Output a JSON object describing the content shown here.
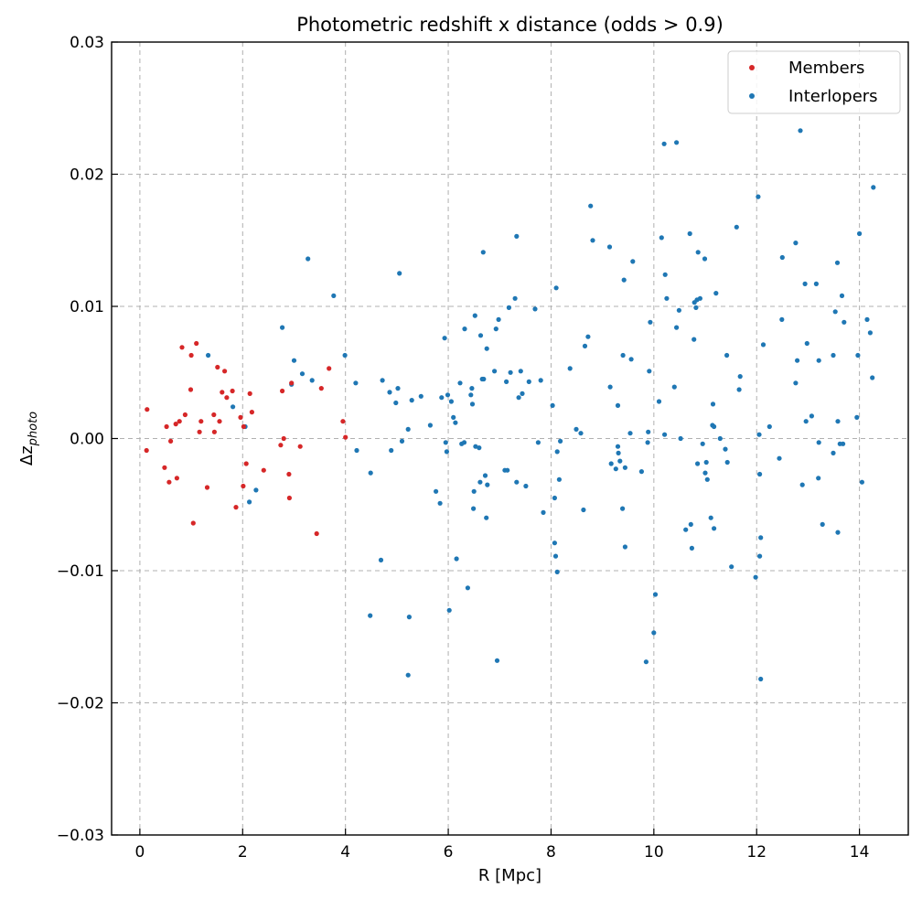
{
  "chart_data": {
    "type": "scatter",
    "title": "Photometric redshift x distance (odds > 0.9)",
    "xlabel": "R [Mpc]",
    "ylabel": {
      "base": "Δz",
      "subscript": "photo"
    },
    "xlim": [
      -0.55,
      14.95
    ],
    "ylim": [
      -0.03,
      0.03
    ],
    "xticks": [
      0,
      2,
      4,
      6,
      8,
      10,
      12,
      14
    ],
    "xtick_labels": [
      "0",
      "2",
      "4",
      "6",
      "8",
      "10",
      "12",
      "14"
    ],
    "yticks": [
      -0.03,
      -0.02,
      -0.01,
      0.0,
      0.01,
      0.02,
      0.03
    ],
    "ytick_labels": [
      "−0.03",
      "−0.02",
      "−0.01",
      "0.00",
      "0.01",
      "0.02",
      "0.03"
    ],
    "grid": true,
    "legend_position": "upper right",
    "series": [
      {
        "name": "Members",
        "color": "#d62728",
        "points": [
          [
            0.14,
            0.0022
          ],
          [
            0.13,
            -0.0009
          ],
          [
            0.48,
            -0.0022
          ],
          [
            0.52,
            0.0009
          ],
          [
            0.57,
            -0.0033
          ],
          [
            0.6,
            -0.0002
          ],
          [
            0.7,
            0.0011
          ],
          [
            0.72,
            -0.003
          ],
          [
            0.77,
            0.0013
          ],
          [
            0.82,
            0.0069
          ],
          [
            0.88,
            0.0018
          ],
          [
            0.99,
            0.0037
          ],
          [
            1.0,
            0.0063
          ],
          [
            1.04,
            -0.0064
          ],
          [
            1.1,
            0.0072
          ],
          [
            1.16,
            0.0005
          ],
          [
            1.19,
            0.0013
          ],
          [
            1.31,
            -0.0037
          ],
          [
            1.44,
            0.0018
          ],
          [
            1.45,
            0.0005
          ],
          [
            1.51,
            0.0054
          ],
          [
            1.55,
            0.0013
          ],
          [
            1.6,
            0.0035
          ],
          [
            1.65,
            0.0051
          ],
          [
            1.69,
            0.0031
          ],
          [
            1.8,
            0.0036
          ],
          [
            1.87,
            -0.0052
          ],
          [
            1.96,
            0.0016
          ],
          [
            2.01,
            -0.0036
          ],
          [
            2.07,
            -0.0019
          ],
          [
            2.14,
            0.0034
          ],
          [
            2.18,
            0.002
          ],
          [
            2.41,
            -0.0024
          ],
          [
            2.74,
            -0.0005
          ],
          [
            2.77,
            0.0036
          ],
          [
            2.8,
            0.0
          ],
          [
            2.9,
            -0.0027
          ],
          [
            2.91,
            -0.0045
          ],
          [
            3.12,
            -0.0006
          ],
          [
            3.44,
            -0.0072
          ],
          [
            3.53,
            0.0038
          ],
          [
            3.68,
            0.0053
          ],
          [
            3.95,
            0.0013
          ],
          [
            4.0,
            0.0001
          ],
          [
            2.95,
            0.0042
          ],
          [
            2.02,
            0.0009
          ]
        ]
      },
      {
        "name": "Interlopers",
        "color": "#1f77b4",
        "points": [
          [
            1.33,
            0.0063
          ],
          [
            1.81,
            0.0024
          ],
          [
            2.05,
            0.0009
          ],
          [
            2.13,
            -0.0048
          ],
          [
            2.26,
            -0.0039
          ],
          [
            2.77,
            0.0084
          ],
          [
            2.95,
            0.0041
          ],
          [
            3.0,
            0.0059
          ],
          [
            3.16,
            0.0049
          ],
          [
            3.27,
            0.0136
          ],
          [
            3.35,
            0.0044
          ],
          [
            3.77,
            0.0108
          ],
          [
            3.99,
            0.0063
          ],
          [
            4.2,
            0.0042
          ],
          [
            4.22,
            -0.0009
          ],
          [
            4.49,
            -0.0026
          ],
          [
            4.48,
            -0.0134
          ],
          [
            4.69,
            -0.0092
          ],
          [
            4.72,
            0.0044
          ],
          [
            4.86,
            0.0035
          ],
          [
            4.89,
            -0.0009
          ],
          [
            4.98,
            0.0027
          ],
          [
            5.02,
            0.0038
          ],
          [
            5.05,
            0.0125
          ],
          [
            5.1,
            -0.0002
          ],
          [
            5.22,
            0.0007
          ],
          [
            5.24,
            -0.0135
          ],
          [
            5.22,
            -0.0179
          ],
          [
            5.29,
            0.0029
          ],
          [
            5.47,
            0.0032
          ],
          [
            5.65,
            0.001
          ],
          [
            5.76,
            -0.004
          ],
          [
            5.84,
            -0.0049
          ],
          [
            5.87,
            0.0031
          ],
          [
            5.93,
            0.0076
          ],
          [
            5.95,
            -0.0003
          ],
          [
            5.97,
            -0.001
          ],
          [
            5.99,
            0.0033
          ],
          [
            6.02,
            -0.013
          ],
          [
            6.06,
            0.0028
          ],
          [
            6.1,
            0.0016
          ],
          [
            6.14,
            0.0012
          ],
          [
            6.16,
            -0.0091
          ],
          [
            6.23,
            0.0042
          ],
          [
            6.26,
            -0.0004
          ],
          [
            6.31,
            -0.0003
          ],
          [
            6.32,
            0.0083
          ],
          [
            6.38,
            -0.0113
          ],
          [
            6.44,
            0.0033
          ],
          [
            6.46,
            0.0038
          ],
          [
            6.47,
            0.0026
          ],
          [
            6.49,
            -0.0053
          ],
          [
            6.52,
            0.0093
          ],
          [
            6.5,
            -0.004
          ],
          [
            6.53,
            -0.0006
          ],
          [
            6.6,
            -0.0007
          ],
          [
            6.62,
            -0.0033
          ],
          [
            6.63,
            0.0078
          ],
          [
            6.66,
            0.0045
          ],
          [
            6.68,
            0.0141
          ],
          [
            6.69,
            0.0045
          ],
          [
            6.72,
            -0.0028
          ],
          [
            6.74,
            -0.006
          ],
          [
            6.75,
            0.0068
          ],
          [
            6.76,
            -0.0035
          ],
          [
            6.9,
            0.0051
          ],
          [
            6.93,
            0.0083
          ],
          [
            6.95,
            -0.0168
          ],
          [
            6.98,
            0.009
          ],
          [
            7.1,
            -0.0024
          ],
          [
            7.13,
            0.0043
          ],
          [
            7.15,
            -0.0024
          ],
          [
            7.18,
            0.0099
          ],
          [
            7.21,
            0.005
          ],
          [
            7.3,
            0.0106
          ],
          [
            7.33,
            -0.0033
          ],
          [
            7.33,
            0.0153
          ],
          [
            7.37,
            0.0031
          ],
          [
            7.41,
            0.0051
          ],
          [
            7.44,
            0.0034
          ],
          [
            7.51,
            -0.0036
          ],
          [
            7.57,
            0.0043
          ],
          [
            7.69,
            0.0098
          ],
          [
            7.75,
            -0.0003
          ],
          [
            7.8,
            0.0044
          ],
          [
            7.85,
            -0.0056
          ],
          [
            8.03,
            0.0025
          ],
          [
            8.07,
            -0.0045
          ],
          [
            8.07,
            -0.0079
          ],
          [
            8.09,
            -0.0089
          ],
          [
            8.1,
            0.0114
          ],
          [
            8.12,
            -0.001
          ],
          [
            8.12,
            -0.0101
          ],
          [
            8.16,
            -0.0031
          ],
          [
            8.18,
            -0.0002
          ],
          [
            8.37,
            0.0053
          ],
          [
            8.49,
            0.0007
          ],
          [
            8.58,
            0.0004
          ],
          [
            8.63,
            -0.0054
          ],
          [
            8.66,
            0.007
          ],
          [
            8.72,
            0.0077
          ],
          [
            8.77,
            0.0176
          ],
          [
            8.81,
            0.015
          ],
          [
            9.14,
            0.0145
          ],
          [
            9.15,
            0.0039
          ],
          [
            9.17,
            -0.0019
          ],
          [
            9.26,
            -0.0023
          ],
          [
            9.3,
            -0.0006
          ],
          [
            9.3,
            0.0025
          ],
          [
            9.31,
            -0.0011
          ],
          [
            9.34,
            -0.0017
          ],
          [
            9.39,
            -0.0053
          ],
          [
            9.4,
            0.0063
          ],
          [
            9.44,
            -0.0082
          ],
          [
            9.42,
            0.012
          ],
          [
            9.44,
            -0.0022
          ],
          [
            9.54,
            0.0004
          ],
          [
            9.56,
            0.006
          ],
          [
            9.59,
            0.0134
          ],
          [
            9.76,
            -0.0025
          ],
          [
            9.85,
            -0.0169
          ],
          [
            9.88,
            -0.0003
          ],
          [
            9.89,
            0.0005
          ],
          [
            9.91,
            0.0051
          ],
          [
            9.93,
            0.0088
          ],
          [
            10.0,
            -0.0147
          ],
          [
            10.03,
            -0.0118
          ],
          [
            10.1,
            0.0028
          ],
          [
            10.15,
            0.0152
          ],
          [
            10.2,
            0.0223
          ],
          [
            10.21,
            0.0003
          ],
          [
            10.22,
            0.0124
          ],
          [
            10.25,
            0.0106
          ],
          [
            10.4,
            0.0039
          ],
          [
            10.44,
            0.0224
          ],
          [
            10.44,
            0.0084
          ],
          [
            10.49,
            0.0097
          ],
          [
            10.52,
            0.0
          ],
          [
            10.62,
            -0.0069
          ],
          [
            10.7,
            0.0155
          ],
          [
            10.72,
            -0.0065
          ],
          [
            10.74,
            -0.0083
          ],
          [
            10.78,
            0.0075
          ],
          [
            10.79,
            0.0103
          ],
          [
            10.82,
            0.0099
          ],
          [
            10.84,
            0.0105
          ],
          [
            10.85,
            -0.0019
          ],
          [
            10.86,
            0.0141
          ],
          [
            10.9,
            0.0106
          ],
          [
            10.95,
            -0.0004
          ],
          [
            10.99,
            0.0136
          ],
          [
            11.0,
            -0.0026
          ],
          [
            11.02,
            -0.0018
          ],
          [
            11.04,
            -0.0031
          ],
          [
            11.11,
            -0.006
          ],
          [
            11.14,
            0.001
          ],
          [
            11.15,
            0.0026
          ],
          [
            11.17,
            0.0009
          ],
          [
            11.17,
            -0.0068
          ],
          [
            11.21,
            0.011
          ],
          [
            11.29,
            0.0
          ],
          [
            11.39,
            -0.0008
          ],
          [
            11.42,
            0.0063
          ],
          [
            11.43,
            -0.0018
          ],
          [
            11.51,
            -0.0097
          ],
          [
            11.61,
            0.016
          ],
          [
            11.66,
            0.0037
          ],
          [
            11.68,
            0.0047
          ],
          [
            11.98,
            -0.0105
          ],
          [
            12.03,
            0.0183
          ],
          [
            12.05,
            0.0003
          ],
          [
            12.06,
            -0.0027
          ],
          [
            12.06,
            -0.0089
          ],
          [
            12.08,
            -0.0075
          ],
          [
            12.08,
            -0.0182
          ],
          [
            12.13,
            0.0071
          ],
          [
            12.25,
            0.0009
          ],
          [
            12.44,
            -0.0015
          ],
          [
            12.49,
            0.009
          ],
          [
            12.5,
            0.0137
          ],
          [
            12.76,
            0.0148
          ],
          [
            12.76,
            0.0042
          ],
          [
            12.79,
            0.0059
          ],
          [
            12.85,
            0.0233
          ],
          [
            12.89,
            -0.0035
          ],
          [
            12.94,
            0.0117
          ],
          [
            12.96,
            0.0013
          ],
          [
            12.98,
            0.0072
          ],
          [
            13.07,
            0.0017
          ],
          [
            13.16,
            0.0117
          ],
          [
            13.21,
            -0.0003
          ],
          [
            13.2,
            -0.003
          ],
          [
            13.21,
            0.0059
          ],
          [
            13.28,
            -0.0065
          ],
          [
            13.49,
            0.0063
          ],
          [
            13.49,
            -0.0011
          ],
          [
            13.53,
            0.0096
          ],
          [
            13.57,
            0.0133
          ],
          [
            13.58,
            0.0013
          ],
          [
            13.58,
            -0.0071
          ],
          [
            13.62,
            -0.0004
          ],
          [
            13.66,
            0.0108
          ],
          [
            13.68,
            -0.0004
          ],
          [
            13.7,
            0.0088
          ],
          [
            13.95,
            0.0016
          ],
          [
            13.97,
            0.0063
          ],
          [
            14.0,
            0.0155
          ],
          [
            14.05,
            -0.0033
          ],
          [
            14.15,
            0.009
          ],
          [
            14.21,
            0.008
          ],
          [
            14.25,
            0.0046
          ],
          [
            14.27,
            0.019
          ]
        ]
      }
    ]
  }
}
